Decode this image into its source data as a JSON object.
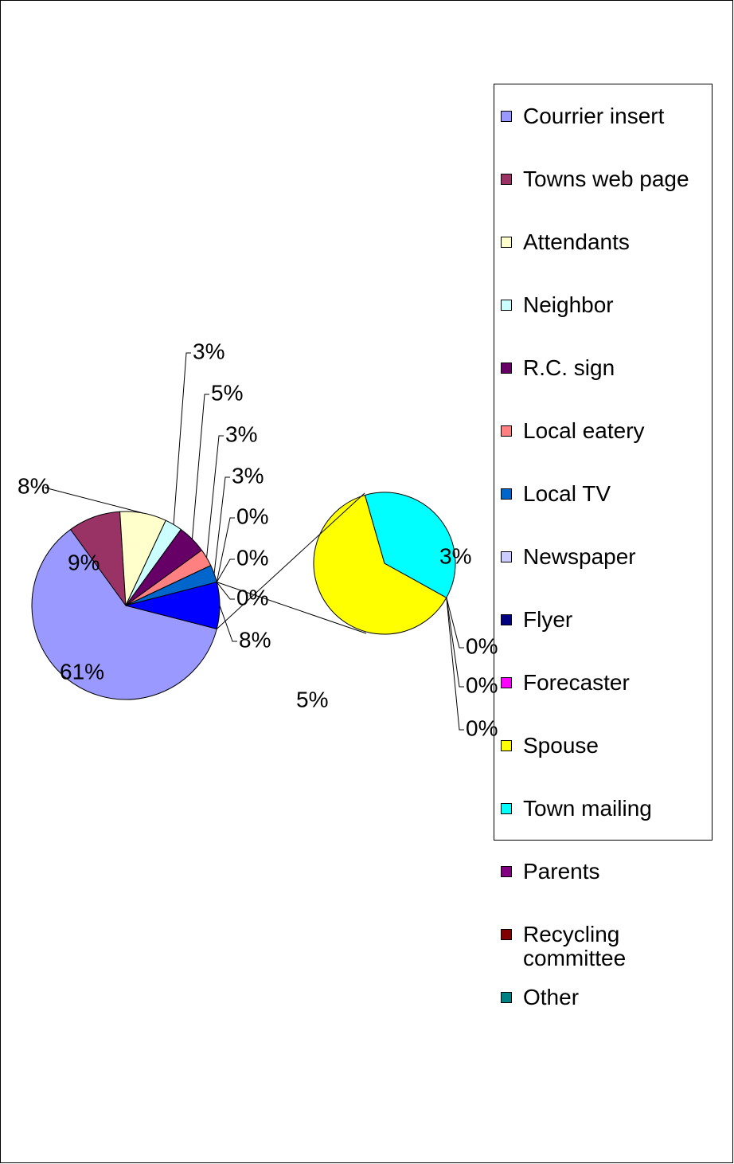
{
  "chart_data": {
    "type": "pie-of-pie",
    "categories": [
      "Courrier insert",
      "Towns web page",
      "Attendants",
      "Neighbor",
      "R.C. sign",
      "Local eatery",
      "Local TV",
      "Newspaper",
      "Flyer",
      "Forecaster",
      "Spouse",
      "Town mailing",
      "Parents",
      "Recycling committee",
      "Other"
    ],
    "values": [
      61,
      9,
      8,
      3,
      5,
      3,
      3,
      0,
      0,
      0,
      5,
      3,
      0,
      0,
      0
    ],
    "value_labels": [
      "61%",
      "9%",
      "8%",
      "3%",
      "5%",
      "3%",
      "3%",
      "0%",
      "0%",
      "0%",
      "5%",
      "3%",
      "0%",
      "0%",
      "0%"
    ],
    "colors": [
      "#9999ff",
      "#993366",
      "#ffffcc",
      "#ccffff",
      "#660066",
      "#ff8080",
      "#0066cc",
      "#ccccff",
      "#000080",
      "#ff00ff",
      "#ffff00",
      "#00ffff",
      "#800080",
      "#800000",
      "#008080"
    ],
    "composite": {
      "value": 8,
      "label": "8%",
      "color": "#0000ff"
    },
    "second_plot_values": 5
  }
}
